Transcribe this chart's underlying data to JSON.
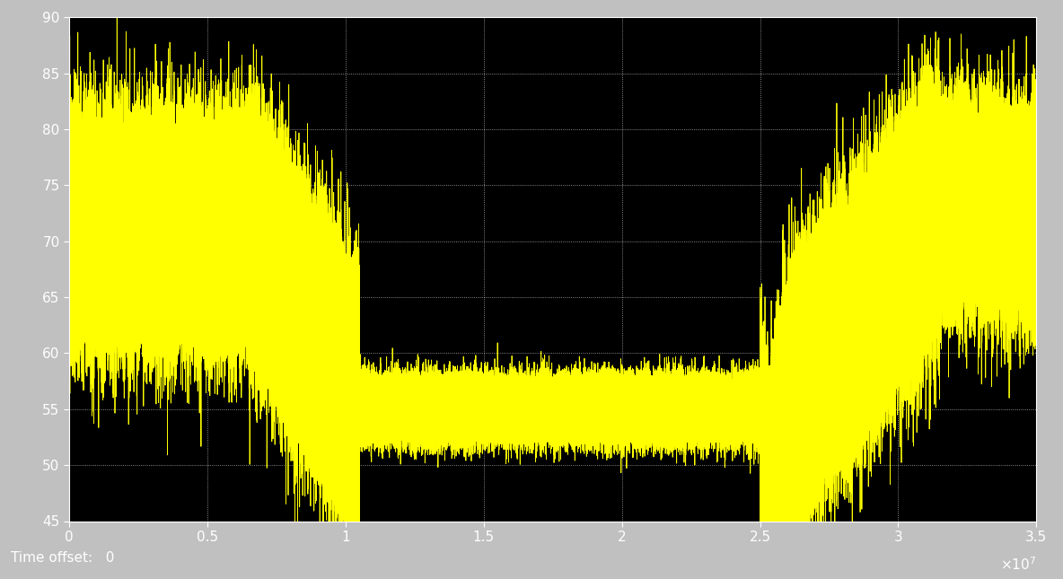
{
  "bg_color": "#000000",
  "fig_bg_color": "#c0c0c0",
  "line_color": "#ffff00",
  "line_width": 0.6,
  "xlim": [
    0,
    35000000.0
  ],
  "ylim": [
    45,
    90
  ],
  "yticks": [
    45,
    50,
    55,
    60,
    65,
    70,
    75,
    80,
    85,
    90
  ],
  "xticks": [
    0,
    5000000,
    10000000,
    15000000,
    20000000,
    25000000,
    30000000,
    35000000
  ],
  "xtick_labels": [
    "0",
    "0.5",
    "1",
    "1.5",
    "2",
    "2.5",
    "3",
    "3.5"
  ],
  "time_offset_label": "Time offset:   0",
  "grid_color": "#ffffff",
  "tick_color": "#ffffff",
  "label_color": "#ffffff",
  "n_points": 320000
}
